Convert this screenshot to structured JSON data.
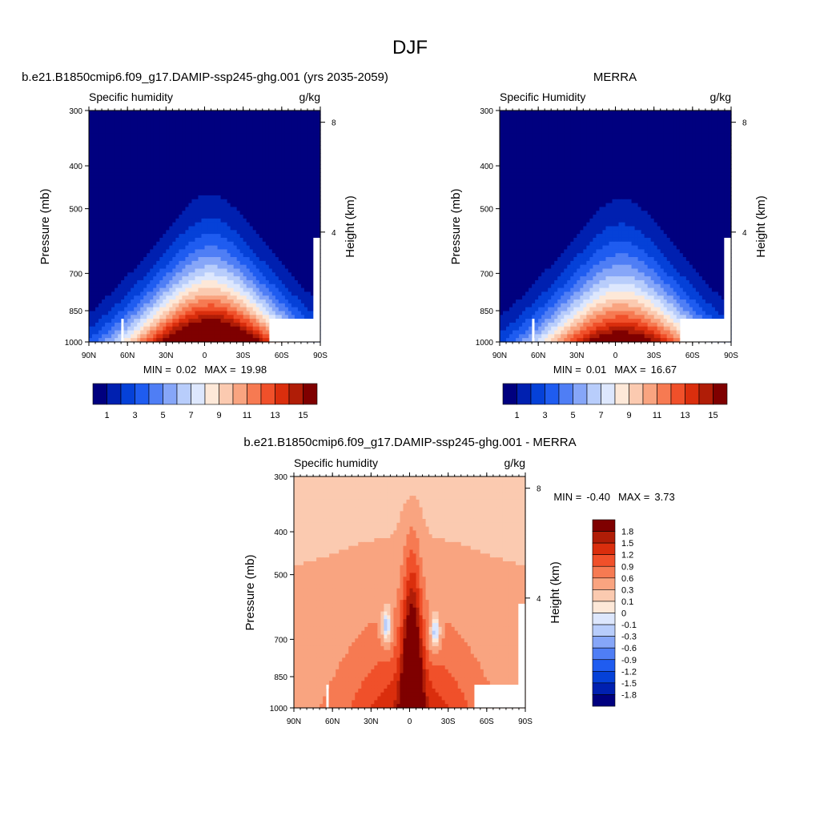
{
  "page": {
    "title": "DJF"
  },
  "chart_data": [
    {
      "type": "heatmap",
      "title": "b.e21.B1850cmip6.f09_g17.DAMIP-ssp245-ghg.001 (yrs 2035-2059)",
      "left_subtitle": "Specific humidity",
      "right_subtitle": "g/kg",
      "ylabel": "Pressure (mb)",
      "ylabel_right": "Height (km)",
      "x_ticks": [
        "90N",
        "60N",
        "30N",
        "0",
        "30S",
        "60S",
        "90S"
      ],
      "y_ticks": [
        "300",
        "400",
        "500",
        "700",
        "850",
        "1000"
      ],
      "y2_ticks": [
        "8",
        "4"
      ],
      "stats": {
        "min_label": "MIN =",
        "min": "0.02",
        "max_label": "MAX =",
        "max": "19.98"
      },
      "colorbar_labels": [
        "1",
        "3",
        "5",
        "7",
        "9",
        "11",
        "13",
        "15"
      ],
      "peak_value": 20.0
    },
    {
      "type": "heatmap",
      "title": "MERRA",
      "left_subtitle": "Specific Humidity",
      "right_subtitle": "g/kg",
      "ylabel": "Pressure (mb)",
      "ylabel_right": "Height (km)",
      "x_ticks": [
        "90N",
        "60N",
        "30N",
        "0",
        "30S",
        "60S",
        "90S"
      ],
      "y_ticks": [
        "300",
        "400",
        "500",
        "700",
        "850",
        "1000"
      ],
      "y2_ticks": [
        "8",
        "4"
      ],
      "stats": {
        "min_label": "MIN =",
        "min": "0.01",
        "max_label": "MAX =",
        "max": "16.67"
      },
      "colorbar_labels": [
        "1",
        "3",
        "5",
        "7",
        "9",
        "11",
        "13",
        "15"
      ],
      "peak_value": 16.7
    },
    {
      "type": "heatmap",
      "title": "b.e21.B1850cmip6.f09_g17.DAMIP-ssp245-ghg.001 - MERRA",
      "left_subtitle": "Specific humidity",
      "right_subtitle": "g/kg",
      "ylabel": "Pressure (mb)",
      "ylabel_right": "Height (km)",
      "x_ticks": [
        "90N",
        "60N",
        "30N",
        "0",
        "30S",
        "60S",
        "90S"
      ],
      "y_ticks": [
        "300",
        "400",
        "500",
        "700",
        "850",
        "1000"
      ],
      "y2_ticks": [
        "8",
        "4"
      ],
      "stats": {
        "min_label": "MIN =",
        "min": "-0.40",
        "max_label": "MAX =",
        "max": "3.73"
      },
      "colorbar_labels": [
        "1.8",
        "1.5",
        "1.2",
        "0.9",
        "0.6",
        "0.3",
        "0.1",
        "0",
        "-0.1",
        "-0.3",
        "-0.6",
        "-0.9",
        "-1.2",
        "-1.5",
        "-1.8"
      ]
    }
  ],
  "colors": {
    "abs_scale": [
      "#00007f",
      "#0020b0",
      "#0541d8",
      "#1f5cf0",
      "#4f7ef5",
      "#86a6f8",
      "#b8cdfb",
      "#dde7fd",
      "#fde8d8",
      "#fbcab0",
      "#f9a480",
      "#f67a52",
      "#f0502a",
      "#da2e0d",
      "#b01d07",
      "#7f0000"
    ],
    "diff_scale": [
      "#7f0000",
      "#b01d07",
      "#da2e0d",
      "#f0502a",
      "#f67a52",
      "#f9a480",
      "#fbcab0",
      "#fde8d8",
      "#dde7fd",
      "#b8cdfb",
      "#86a6f8",
      "#4f7ef5",
      "#1f5cf0",
      "#0541d8",
      "#0020b0",
      "#00007f"
    ]
  }
}
